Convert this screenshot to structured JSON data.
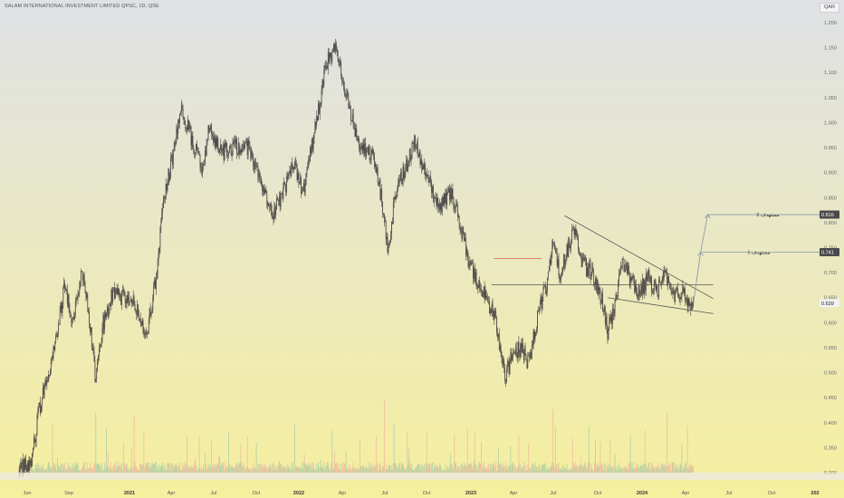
{
  "header": {
    "title": "SALAM INTERNATIONAL INVESTMENT LIMITED QPSC, 1D, QSE",
    "currency": "QAR"
  },
  "colors": {
    "candle": "#4a4545",
    "volume_up": "#a9cfa6",
    "volume_down": "#f0b9a0",
    "trendline": "#555555",
    "target_line": "#8e9aa6",
    "red_marker": "#e05a3a",
    "badge_dark": "#4a4a4a",
    "badge_light": "#f2f2f2"
  },
  "chart_data": {
    "type": "candlestick",
    "title": "SALAM INTERNATIONAL INVESTMENT LIMITED QPSC, 1D, QSE",
    "ylim": [
      0.3,
      1.2
    ],
    "y_ticks": [
      "1.200",
      "1.150",
      "1.100",
      "1.050",
      "1.000",
      "0.950",
      "0.900",
      "0.850",
      "0.800",
      "0.750",
      "0.700",
      "0.650",
      "0.600",
      "0.550",
      "0.500",
      "0.450",
      "0.400",
      "0.350",
      "0.300"
    ],
    "x_ticks": [
      {
        "label": "Jun",
        "bold": false
      },
      {
        "label": "Sep",
        "bold": false
      },
      {
        "label": "2021",
        "bold": true
      },
      {
        "label": "Apr",
        "bold": false
      },
      {
        "label": "Jul",
        "bold": false
      },
      {
        "label": "Oct",
        "bold": false
      },
      {
        "label": "2022",
        "bold": true
      },
      {
        "label": "Apr",
        "bold": false
      },
      {
        "label": "Jul",
        "bold": false
      },
      {
        "label": "Oct",
        "bold": false
      },
      {
        "label": "2023",
        "bold": true
      },
      {
        "label": "Apr",
        "bold": false
      },
      {
        "label": "Jul",
        "bold": false
      },
      {
        "label": "Oct",
        "bold": false
      },
      {
        "label": "2024",
        "bold": true
      },
      {
        "label": "Apr",
        "bold": false
      },
      {
        "label": "Jul",
        "bold": false
      },
      {
        "label": "Oct",
        "bold": false
      },
      {
        "label": "202",
        "bold": true
      }
    ],
    "price_path": [
      [
        "2020-05-15",
        0.305
      ],
      [
        "2020-06-10",
        0.32
      ],
      [
        "2020-06-25",
        0.42
      ],
      [
        "2020-07-15",
        0.49
      ],
      [
        "2020-08-05",
        0.58
      ],
      [
        "2020-08-20",
        0.68
      ],
      [
        "2020-09-05",
        0.6
      ],
      [
        "2020-09-25",
        0.7
      ],
      [
        "2020-10-10",
        0.62
      ],
      [
        "2020-10-25",
        0.48
      ],
      [
        "2020-11-10",
        0.6
      ],
      [
        "2020-12-01",
        0.66
      ],
      [
        "2021-01-15",
        0.64
      ],
      [
        "2021-02-10",
        0.58
      ],
      [
        "2021-03-01",
        0.68
      ],
      [
        "2021-03-20",
        0.85
      ],
      [
        "2021-04-10",
        0.95
      ],
      [
        "2021-04-25",
        1.03
      ],
      [
        "2021-05-20",
        0.96
      ],
      [
        "2021-06-10",
        0.9
      ],
      [
        "2021-06-25",
        1.0
      ],
      [
        "2021-07-15",
        0.94
      ],
      [
        "2021-08-15",
        0.95
      ],
      [
        "2021-09-10",
        0.96
      ],
      [
        "2021-10-10",
        0.88
      ],
      [
        "2021-11-05",
        0.82
      ],
      [
        "2021-11-25",
        0.85
      ],
      [
        "2021-12-20",
        0.92
      ],
      [
        "2022-01-10",
        0.86
      ],
      [
        "2022-02-10",
        1.02
      ],
      [
        "2022-03-01",
        1.12
      ],
      [
        "2022-03-20",
        1.15
      ],
      [
        "2022-04-10",
        1.06
      ],
      [
        "2022-05-05",
        0.96
      ],
      [
        "2022-06-10",
        0.93
      ],
      [
        "2022-06-25",
        0.85
      ],
      [
        "2022-07-10",
        0.74
      ],
      [
        "2022-07-25",
        0.86
      ],
      [
        "2022-08-15",
        0.91
      ],
      [
        "2022-09-05",
        0.96
      ],
      [
        "2022-10-05",
        0.88
      ],
      [
        "2022-10-25",
        0.83
      ],
      [
        "2022-11-20",
        0.86
      ],
      [
        "2022-12-10",
        0.8
      ],
      [
        "2022-12-25",
        0.73
      ],
      [
        "2023-01-20",
        0.67
      ],
      [
        "2023-02-20",
        0.62
      ],
      [
        "2023-03-05",
        0.55
      ],
      [
        "2023-03-15",
        0.49
      ],
      [
        "2023-03-30",
        0.53
      ],
      [
        "2023-04-15",
        0.55
      ],
      [
        "2023-05-05",
        0.52
      ],
      [
        "2023-05-25",
        0.62
      ],
      [
        "2023-06-15",
        0.69
      ],
      [
        "2023-06-25",
        0.76
      ],
      [
        "2023-07-10",
        0.7
      ],
      [
        "2023-07-25",
        0.74
      ],
      [
        "2023-08-10",
        0.79
      ],
      [
        "2023-08-25",
        0.72
      ],
      [
        "2023-09-15",
        0.7
      ],
      [
        "2023-10-05",
        0.66
      ],
      [
        "2023-10-20",
        0.58
      ],
      [
        "2023-11-05",
        0.64
      ],
      [
        "2023-11-20",
        0.73
      ],
      [
        "2023-12-05",
        0.69
      ],
      [
        "2023-12-25",
        0.66
      ],
      [
        "2024-01-15",
        0.69
      ],
      [
        "2024-02-01",
        0.66
      ],
      [
        "2024-02-20",
        0.7
      ],
      [
        "2024-03-10",
        0.65
      ],
      [
        "2024-03-25",
        0.66
      ],
      [
        "2024-04-10",
        0.64
      ],
      [
        "2024-04-20",
        0.639
      ]
    ],
    "current_price": 0.639,
    "current_price_label": "0.639",
    "annotations": {
      "target_1": {
        "label": "مستهدف 1",
        "value_label": "0.741",
        "value": 0.741
      },
      "target_2": {
        "label": "مستهدف 2",
        "value_label": "0.816",
        "value": 0.816
      },
      "upper_trendline": [
        [
          "2023-07-20",
          0.814
        ],
        [
          "2024-06-01",
          0.648
        ]
      ],
      "lower_trendline": [
        [
          "2023-10-20",
          0.65
        ],
        [
          "2024-06-01",
          0.618
        ]
      ],
      "horizontal_line": [
        [
          "2023-02-15",
          0.676
        ],
        [
          "2024-06-01",
          0.676
        ]
      ],
      "red_segment": [
        [
          "2023-02-20",
          0.728
        ],
        [
          "2023-06-01",
          0.728
        ]
      ],
      "breakout_arrow": [
        [
          "2024-04-20",
          0.64
        ],
        [
          "2024-05-05",
          0.741
        ],
        [
          "2024-05-20",
          0.816
        ]
      ]
    }
  }
}
